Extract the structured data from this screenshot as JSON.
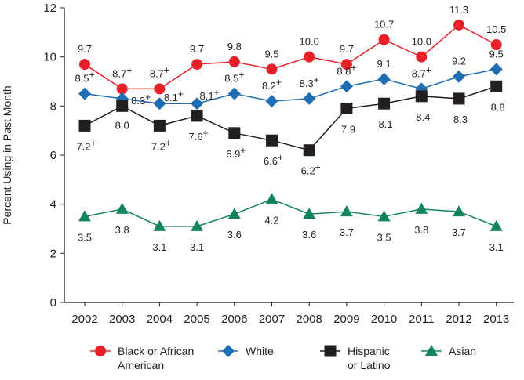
{
  "chart_data": {
    "type": "line",
    "title": "",
    "xlabel": "",
    "ylabel": "Percent Using in Past Month",
    "ylim": [
      0,
      12
    ],
    "yticks": [
      0,
      2,
      4,
      6,
      8,
      10,
      12
    ],
    "x": [
      "2002",
      "2003",
      "2004",
      "2005",
      "2006",
      "2007",
      "2008",
      "2009",
      "2010",
      "2011",
      "2012",
      "2013"
    ],
    "significance_marker": "+",
    "legend_position": "bottom",
    "series": [
      {
        "name": "Black or African American",
        "legend_lines": [
          "Black or African",
          "American"
        ],
        "marker": "circle",
        "color": "#e8202a",
        "values": [
          9.7,
          8.7,
          8.7,
          9.7,
          9.8,
          9.5,
          10.0,
          9.7,
          10.7,
          10.0,
          11.3,
          10.5
        ],
        "labels": [
          "9.7",
          "8.7",
          "8.7",
          "9.7",
          "9.8",
          "9.5",
          "10.0",
          "9.7",
          "10.7",
          "10.0",
          "11.3",
          "10.5"
        ],
        "flags": [
          false,
          true,
          true,
          false,
          false,
          false,
          false,
          false,
          false,
          false,
          false,
          false
        ]
      },
      {
        "name": "White",
        "legend_lines": [
          "White"
        ],
        "marker": "diamond",
        "color": "#1f6db3",
        "values": [
          8.5,
          8.3,
          8.1,
          8.1,
          8.5,
          8.2,
          8.3,
          8.8,
          9.1,
          8.7,
          9.2,
          9.5
        ],
        "labels": [
          "8.5",
          "8.3",
          "8.1",
          "8.1",
          "8.5",
          "8.2",
          "8.3",
          "8.8",
          "9.1",
          "8.7",
          "9.2",
          "9.5"
        ],
        "flags": [
          true,
          true,
          true,
          true,
          true,
          true,
          true,
          true,
          false,
          true,
          false,
          false
        ]
      },
      {
        "name": "Hispanic or Latino",
        "legend_lines": [
          "Hispanic",
          "or Latino"
        ],
        "marker": "square",
        "color": "#231f20",
        "values": [
          7.2,
          8.0,
          7.2,
          7.6,
          6.9,
          6.6,
          6.2,
          7.9,
          8.1,
          8.4,
          8.3,
          8.8
        ],
        "labels": [
          "7.2",
          "8.0",
          "7.2",
          "7.6",
          "6.9",
          "6.6",
          "6.2",
          "7.9",
          "8.1",
          "8.4",
          "8.3",
          "8.8"
        ],
        "flags": [
          true,
          false,
          true,
          true,
          true,
          true,
          true,
          false,
          false,
          false,
          false,
          false
        ]
      },
      {
        "name": "Asian",
        "legend_lines": [
          "Asian"
        ],
        "marker": "triangle",
        "color": "#11845b",
        "values": [
          3.5,
          3.8,
          3.1,
          3.1,
          3.6,
          4.2,
          3.6,
          3.7,
          3.5,
          3.8,
          3.7,
          3.1
        ],
        "labels": [
          "3.5",
          "3.8",
          "3.1",
          "3.1",
          "3.6",
          "4.2",
          "3.6",
          "3.7",
          "3.5",
          "3.8",
          "3.7",
          "3.1"
        ],
        "flags": [
          false,
          false,
          false,
          false,
          false,
          false,
          false,
          false,
          false,
          false,
          false,
          false
        ]
      }
    ]
  }
}
